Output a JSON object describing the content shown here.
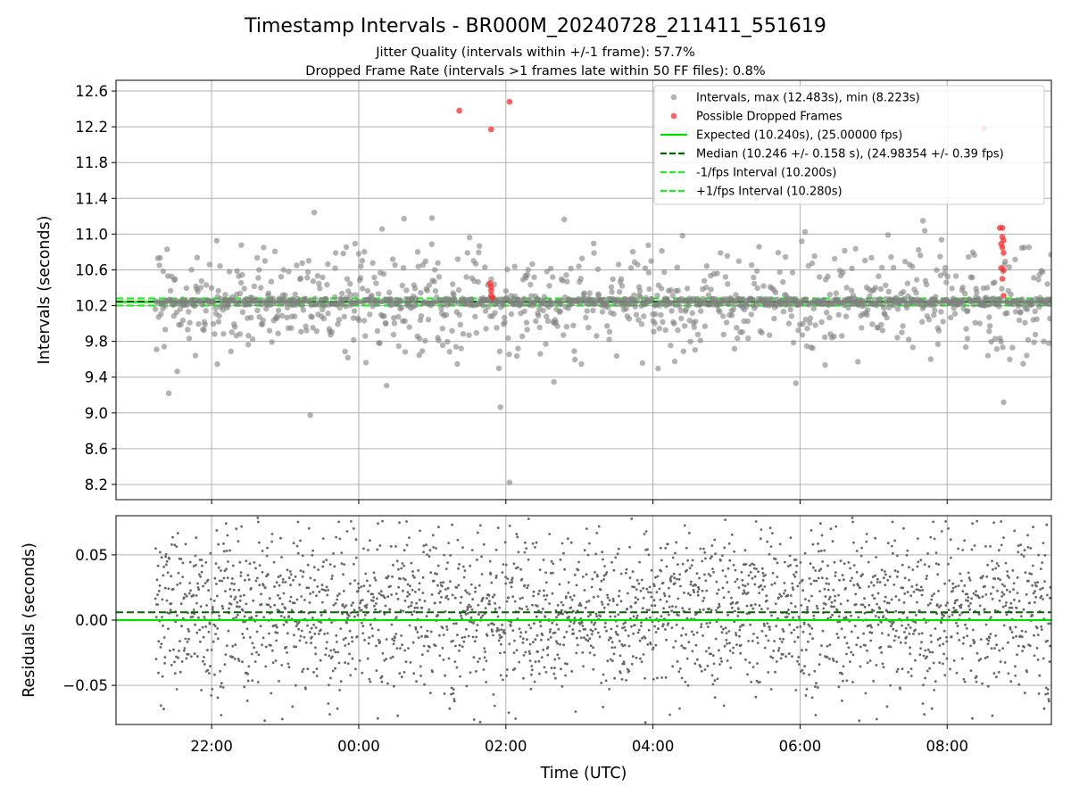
{
  "title": "Timestamp Intervals - BR000M_20240728_211411_551619",
  "subtitle_line1": "Jitter Quality (intervals within +/-1 frame): 57.7%",
  "subtitle_line2": "Dropped Frame Rate (intervals >1 frames late within 50 FF files): 0.8%",
  "colors": {
    "intervals": "#808080",
    "dropped": "#ff2a2a",
    "expected": "#00e000",
    "median": "#006400",
    "bounds": "#22ee22",
    "grid": "#b0b0b0"
  },
  "chart_data": [
    {
      "type": "scatter",
      "ylabel": "Intervals (seconds)",
      "ylim": [
        8.03,
        12.72
      ],
      "yticks": [
        8.2,
        8.6,
        9.0,
        9.4,
        9.8,
        10.2,
        10.6,
        11.0,
        11.4,
        11.8,
        12.2,
        12.6
      ],
      "ytick_labels": [
        "8.2",
        "8.6",
        "9.0",
        "9.4",
        "9.8",
        "10.2",
        "10.6",
        "11.0",
        "11.4",
        "11.8",
        "12.2",
        "12.6"
      ],
      "xlim": [
        "2024-07-28T20:42",
        "2024-07-29T09:25"
      ],
      "grid": true,
      "legend_position": "upper right",
      "legend": [
        "Intervals, max (12.483s), min (8.223s)",
        "Possible Dropped Frames",
        "Expected (10.240s), (25.00000 fps)",
        "Median (10.246 +/- 0.158 s), (24.98354 +/- 0.39 fps)",
        "-1/fps Interval (10.200s)",
        "+1/fps Interval (10.280s)"
      ],
      "reference_lines": {
        "expected": 10.24,
        "median": 10.246,
        "minus_one_frame": 10.2,
        "plus_one_frame": 10.28
      },
      "data_range": [
        "2024-07-28T21:14",
        "2024-07-29T09:25"
      ],
      "max_interval": 12.483,
      "min_interval": 8.223,
      "dropped_frames": [
        {
          "x": "2024-07-29T01:22",
          "y": 12.38
        },
        {
          "x": "2024-07-29T01:48",
          "y": 12.17
        },
        {
          "x": "2024-07-29T02:03",
          "y": 12.48
        },
        {
          "x": "2024-07-29T08:30",
          "y": 12.18
        },
        {
          "x": "2024-07-29T01:47",
          "y": 10.45
        },
        {
          "x": "2024-07-29T01:48",
          "y": 10.41
        },
        {
          "x": "2024-07-29T01:48",
          "y": 10.37
        },
        {
          "x": "2024-07-29T01:48",
          "y": 10.32
        },
        {
          "x": "2024-07-29T01:49",
          "y": 10.29
        },
        {
          "x": "2024-07-29T08:43",
          "y": 11.07
        },
        {
          "x": "2024-07-29T08:45",
          "y": 11.07
        },
        {
          "x": "2024-07-29T08:45",
          "y": 10.97
        },
        {
          "x": "2024-07-29T08:46",
          "y": 10.93
        },
        {
          "x": "2024-07-29T08:44",
          "y": 10.89
        },
        {
          "x": "2024-07-29T08:45",
          "y": 10.85
        },
        {
          "x": "2024-07-29T08:46",
          "y": 10.79
        },
        {
          "x": "2024-07-29T08:44",
          "y": 10.62
        },
        {
          "x": "2024-07-29T08:46",
          "y": 10.6
        },
        {
          "x": "2024-07-29T08:45",
          "y": 10.5
        },
        {
          "x": "2024-07-29T08:46",
          "y": 10.31
        }
      ]
    },
    {
      "type": "scatter",
      "ylabel": "Residuals (seconds)",
      "xlabel": "Time (UTC)",
      "ylim": [
        -0.08,
        0.08
      ],
      "yticks": [
        -0.05,
        0.0,
        0.05
      ],
      "ytick_labels": [
        "−0.05",
        "0.00",
        "0.05"
      ],
      "xlim": [
        "2024-07-28T20:42",
        "2024-07-29T09:25"
      ],
      "xticks": [
        "2024-07-28T22:00",
        "2024-07-29T00:00",
        "2024-07-29T02:00",
        "2024-07-29T04:00",
        "2024-07-29T06:00",
        "2024-07-29T08:00"
      ],
      "xtick_labels": [
        "22:00",
        "00:00",
        "02:00",
        "04:00",
        "06:00",
        "08:00"
      ],
      "grid": true,
      "reference_lines": {
        "expected": 0.0,
        "median": 0.006
      }
    }
  ]
}
